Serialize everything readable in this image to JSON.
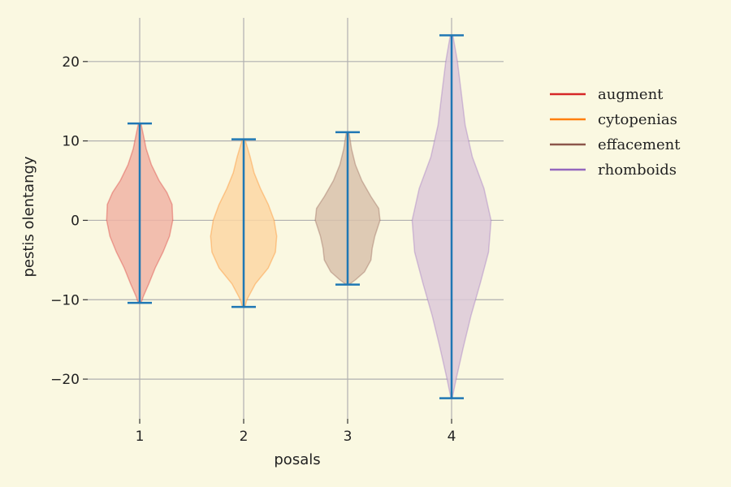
{
  "chart_data": {
    "type": "violin",
    "title": "",
    "xlabel": "posals",
    "ylabel": "pestis olentangy",
    "x_ticks": [
      "1",
      "2",
      "3",
      "4"
    ],
    "y_ticks": [
      -20,
      -10,
      0,
      10,
      20
    ],
    "y_tick_labels": [
      "−20",
      "−10",
      "0",
      "10",
      "20"
    ],
    "ylim": [
      -25,
      25.5
    ],
    "xlim": [
      0.5,
      4.5
    ],
    "grid": true,
    "legend_position": "right",
    "series": [
      {
        "name": "augment",
        "position": 1,
        "color": "#d62728",
        "fill": "#f0b4a4",
        "min": -10.4,
        "max": 12.2,
        "profile": [
          [
            -10.4,
            0.1
          ],
          [
            -9.5,
            0.3
          ],
          [
            -8,
            0.7
          ],
          [
            -6,
            1.2
          ],
          [
            -4,
            1.8
          ],
          [
            -2,
            2.3
          ],
          [
            0,
            2.55
          ],
          [
            2,
            2.5
          ],
          [
            3.5,
            2.1
          ],
          [
            5,
            1.5
          ],
          [
            7,
            0.9
          ],
          [
            9,
            0.5
          ],
          [
            11,
            0.25
          ],
          [
            12.2,
            0.1
          ]
        ]
      },
      {
        "name": "cytopenias",
        "position": 2,
        "color": "#ff7f0e",
        "fill": "#fcd7a3",
        "min": -10.9,
        "max": 10.2,
        "profile": [
          [
            -10.9,
            0.1
          ],
          [
            -10,
            0.25
          ],
          [
            -8,
            0.9
          ],
          [
            -6,
            1.9
          ],
          [
            -4,
            2.45
          ],
          [
            -2,
            2.55
          ],
          [
            0,
            2.35
          ],
          [
            2,
            1.9
          ],
          [
            4,
            1.3
          ],
          [
            6,
            0.8
          ],
          [
            8,
            0.5
          ],
          [
            10.2,
            0.1
          ]
        ]
      },
      {
        "name": "effacement",
        "position": 3,
        "color": "#8c564b",
        "fill": "#d8c2ab",
        "min": -8.1,
        "max": 11.1,
        "profile": [
          [
            -8.1,
            0.1
          ],
          [
            -7.5,
            0.6
          ],
          [
            -6.5,
            1.3
          ],
          [
            -5,
            1.8
          ],
          [
            -3.5,
            1.9
          ],
          [
            -2,
            2.1
          ],
          [
            0,
            2.5
          ],
          [
            1.5,
            2.4
          ],
          [
            3,
            1.8
          ],
          [
            5,
            1.1
          ],
          [
            7,
            0.6
          ],
          [
            9,
            0.3
          ],
          [
            11.1,
            0.1
          ]
        ]
      },
      {
        "name": "rhomboids",
        "position": 4,
        "color": "#9467bd",
        "fill": "#dcc9d8",
        "min": -22.4,
        "max": 23.3,
        "profile": [
          [
            -22.4,
            0.05
          ],
          [
            -20,
            0.35
          ],
          [
            -16,
            0.9
          ],
          [
            -12,
            1.5
          ],
          [
            -8,
            2.2
          ],
          [
            -4,
            2.85
          ],
          [
            0,
            3.05
          ],
          [
            4,
            2.5
          ],
          [
            8,
            1.6
          ],
          [
            12,
            1.05
          ],
          [
            16,
            0.75
          ],
          [
            20,
            0.45
          ],
          [
            23.3,
            0.1
          ]
        ]
      }
    ]
  }
}
